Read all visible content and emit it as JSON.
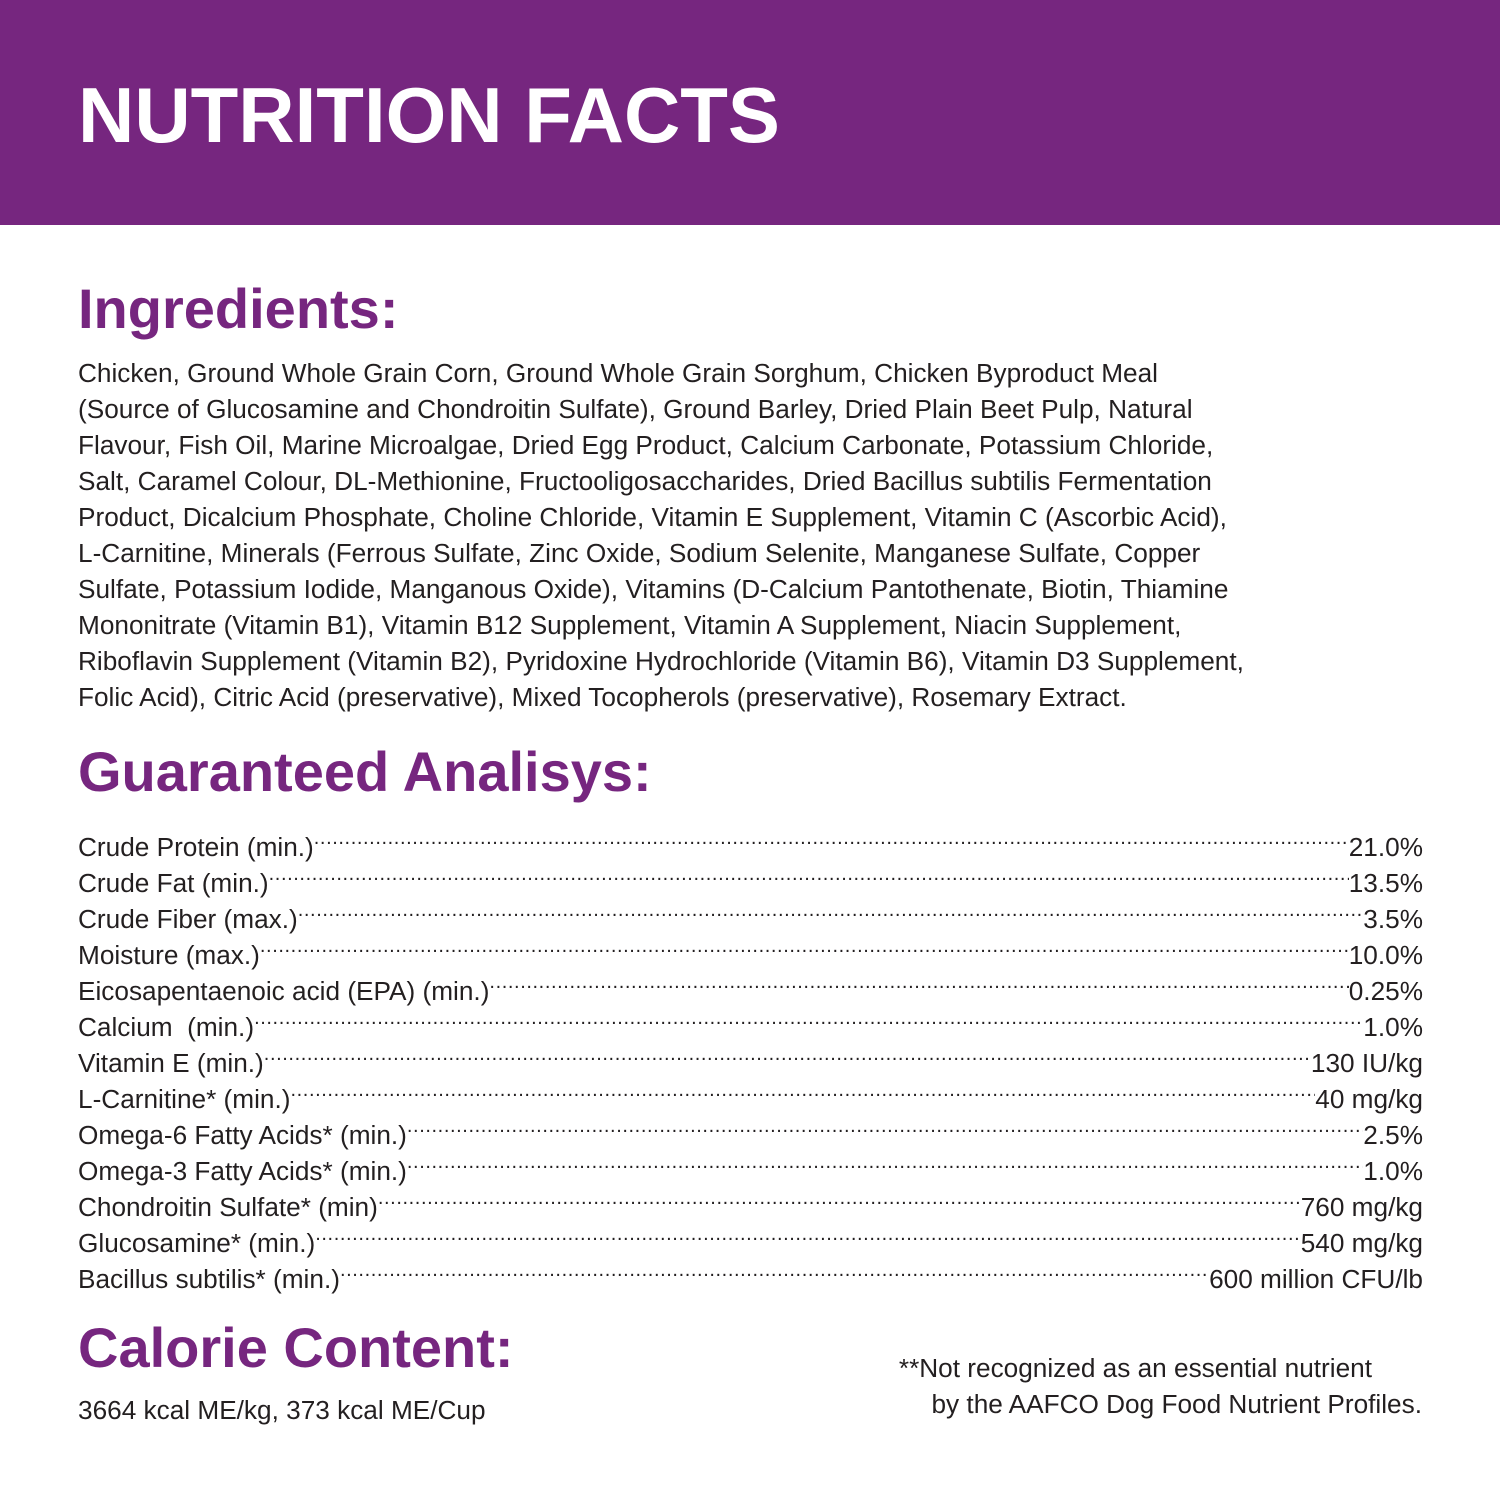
{
  "header": {
    "title": "NUTRITION FACTS",
    "background_color": "#76267f"
  },
  "colors": {
    "accent": "#76267f",
    "text": "#231f20",
    "background": "#ffffff"
  },
  "ingredients": {
    "heading": "Ingredients:",
    "lines": [
      "Chicken, Ground Whole Grain Corn, Ground Whole Grain Sorghum, Chicken Byproduct Meal",
      "(Source of Glucosamine and Chondroitin Sulfate), Ground Barley, Dried Plain Beet Pulp, Natural",
      "Flavour, Fish Oil, Marine Microalgae, Dried Egg Product, Calcium Carbonate, Potassium Chloride,",
      "Salt, Caramel Colour, DL-Methionine, Fructooligosaccharides, Dried Bacillus subtilis Fermentation",
      "Product, Dicalcium Phosphate, Choline Chloride, Vitamin E Supplement, Vitamin C (Ascorbic Acid),",
      "L-Carnitine, Minerals (Ferrous Sulfate, Zinc Oxide, Sodium Selenite, Manganese Sulfate, Copper",
      "Sulfate, Potassium Iodide, Manganous Oxide), Vitamins (D-Calcium Pantothenate, Biotin, Thiamine",
      "Mononitrate (Vitamin B1), Vitamin B12 Supplement, Vitamin A Supplement, Niacin Supplement,",
      "Riboflavin Supplement (Vitamin B2), Pyridoxine Hydrochloride (Vitamin B6), Vitamin D3 Supplement,",
      "Folic Acid), Citric Acid (preservative), Mixed Tocopherols (preservative), Rosemary Extract."
    ]
  },
  "guaranteed_analysis": {
    "heading": "Guaranteed Analisys:",
    "rows": [
      {
        "label": "Crude Protein (min.)",
        "value": "21.0%"
      },
      {
        "label": "Crude Fat (min.)",
        "value": "13.5%"
      },
      {
        "label": "Crude Fiber (max.)",
        "value": "3.5%"
      },
      {
        "label": "Moisture (max.)",
        "value": "10.0%"
      },
      {
        "label": "Eicosapentaenoic acid (EPA) (min.)",
        "value": "0.25%"
      },
      {
        "label": "Calcium  (min.)",
        "value": "1.0%"
      },
      {
        "label": "Vitamin E (min.)",
        "value": "130 IU/kg"
      },
      {
        "label": "L-Carnitine* (min.)",
        "value": "40 mg/kg"
      },
      {
        "label": "Omega-6 Fatty Acids* (min.)",
        "value": "2.5%"
      },
      {
        "label": "Omega-3 Fatty Acids* (min.)",
        "value": "1.0%"
      },
      {
        "label": "Chondroitin Sulfate* (min)",
        "value": "760 mg/kg"
      },
      {
        "label": "Glucosamine* (min.)",
        "value": "540 mg/kg"
      },
      {
        "label": "Bacillus subtilis* (min.)",
        "value": "600 million CFU/lb"
      }
    ]
  },
  "calorie_content": {
    "heading": "Calorie Content:",
    "text": "3664 kcal ME/kg, 373 kcal ME/Cup"
  },
  "footnote": {
    "line_1": "**Not recognized as an essential nutrient",
    "line_2": "by the AAFCO Dog Food Nutrient Profiles."
  }
}
